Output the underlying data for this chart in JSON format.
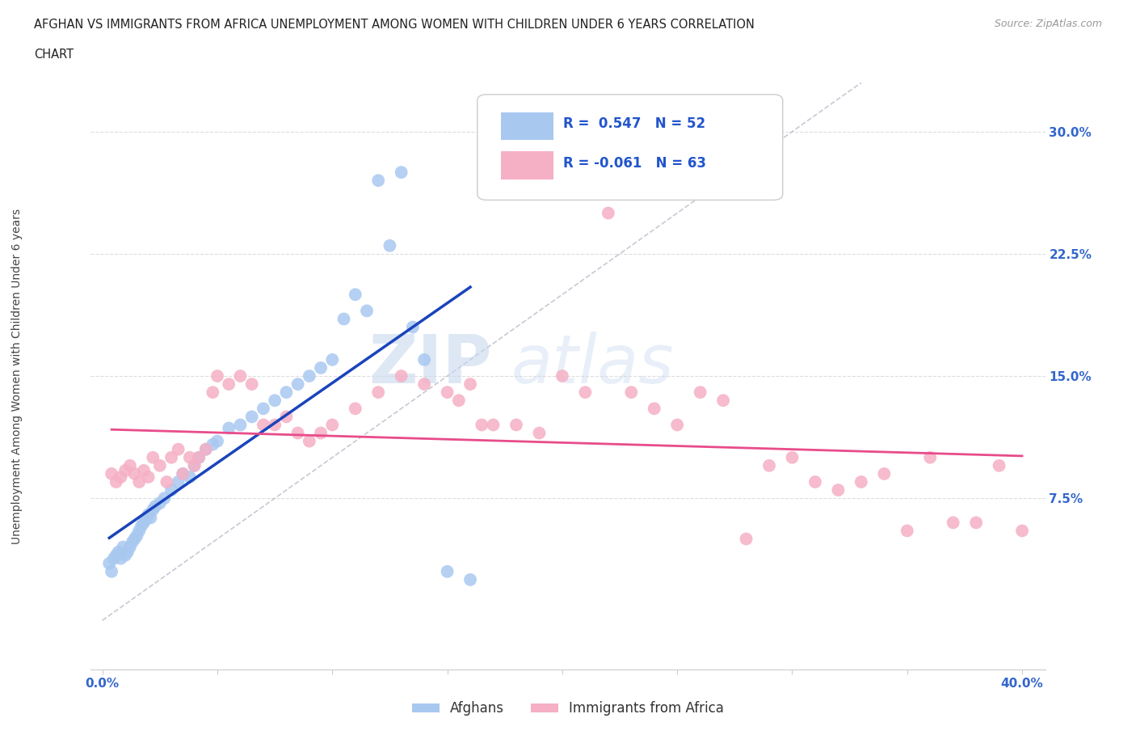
{
  "title_line1": "AFGHAN VS IMMIGRANTS FROM AFRICA UNEMPLOYMENT AMONG WOMEN WITH CHILDREN UNDER 6 YEARS CORRELATION",
  "title_line2": "CHART",
  "source": "Source: ZipAtlas.com",
  "ylabel": "Unemployment Among Women with Children Under 6 years",
  "xlim": [
    -0.005,
    0.41
  ],
  "ylim": [
    -0.03,
    0.33
  ],
  "xticks": [
    0.0,
    0.05,
    0.1,
    0.15,
    0.2,
    0.25,
    0.3,
    0.35,
    0.4
  ],
  "yticks_right": [
    0.075,
    0.15,
    0.225,
    0.3
  ],
  "ytick_labels_right": [
    "7.5%",
    "15.0%",
    "22.5%",
    "30.0%"
  ],
  "r_afghan": 0.547,
  "n_afghan": 52,
  "r_africa": -0.061,
  "n_africa": 63,
  "color_afghan": "#a8c8f0",
  "color_africa": "#f5b0c5",
  "trendline_afghan_color": "#1a44bb",
  "trendline_africa_color": "#e84c8a",
  "afghan_x": [
    0.003,
    0.004,
    0.005,
    0.006,
    0.007,
    0.008,
    0.009,
    0.01,
    0.011,
    0.012,
    0.013,
    0.014,
    0.015,
    0.016,
    0.017,
    0.018,
    0.019,
    0.02,
    0.021,
    0.022,
    0.023,
    0.025,
    0.027,
    0.03,
    0.033,
    0.035,
    0.038,
    0.04,
    0.042,
    0.045,
    0.048,
    0.05,
    0.055,
    0.06,
    0.065,
    0.07,
    0.075,
    0.08,
    0.085,
    0.09,
    0.095,
    0.1,
    0.105,
    0.11,
    0.115,
    0.12,
    0.125,
    0.13,
    0.135,
    0.14,
    0.15,
    0.16
  ],
  "afghan_y": [
    0.035,
    0.03,
    0.038,
    0.04,
    0.042,
    0.038,
    0.045,
    0.04,
    0.042,
    0.045,
    0.048,
    0.05,
    0.052,
    0.055,
    0.058,
    0.06,
    0.062,
    0.065,
    0.063,
    0.068,
    0.07,
    0.072,
    0.075,
    0.08,
    0.085,
    0.09,
    0.088,
    0.095,
    0.1,
    0.105,
    0.108,
    0.11,
    0.118,
    0.12,
    0.125,
    0.13,
    0.135,
    0.14,
    0.145,
    0.15,
    0.155,
    0.16,
    0.185,
    0.2,
    0.19,
    0.27,
    0.23,
    0.275,
    0.18,
    0.16,
    0.03,
    0.025
  ],
  "africa_x": [
    0.004,
    0.006,
    0.008,
    0.01,
    0.012,
    0.014,
    0.016,
    0.018,
    0.02,
    0.022,
    0.025,
    0.028,
    0.03,
    0.033,
    0.035,
    0.038,
    0.04,
    0.042,
    0.045,
    0.048,
    0.05,
    0.055,
    0.06,
    0.065,
    0.07,
    0.075,
    0.08,
    0.085,
    0.09,
    0.095,
    0.1,
    0.11,
    0.12,
    0.13,
    0.14,
    0.15,
    0.155,
    0.16,
    0.165,
    0.17,
    0.18,
    0.19,
    0.2,
    0.21,
    0.22,
    0.23,
    0.24,
    0.25,
    0.26,
    0.27,
    0.28,
    0.29,
    0.3,
    0.31,
    0.32,
    0.33,
    0.34,
    0.35,
    0.36,
    0.37,
    0.38,
    0.39,
    0.4
  ],
  "africa_y": [
    0.09,
    0.085,
    0.088,
    0.092,
    0.095,
    0.09,
    0.085,
    0.092,
    0.088,
    0.1,
    0.095,
    0.085,
    0.1,
    0.105,
    0.09,
    0.1,
    0.095,
    0.1,
    0.105,
    0.14,
    0.15,
    0.145,
    0.15,
    0.145,
    0.12,
    0.12,
    0.125,
    0.115,
    0.11,
    0.115,
    0.12,
    0.13,
    0.14,
    0.15,
    0.145,
    0.14,
    0.135,
    0.145,
    0.12,
    0.12,
    0.12,
    0.115,
    0.15,
    0.14,
    0.25,
    0.14,
    0.13,
    0.12,
    0.14,
    0.135,
    0.05,
    0.095,
    0.1,
    0.085,
    0.08,
    0.085,
    0.09,
    0.055,
    0.1,
    0.06,
    0.06,
    0.095,
    0.055
  ]
}
